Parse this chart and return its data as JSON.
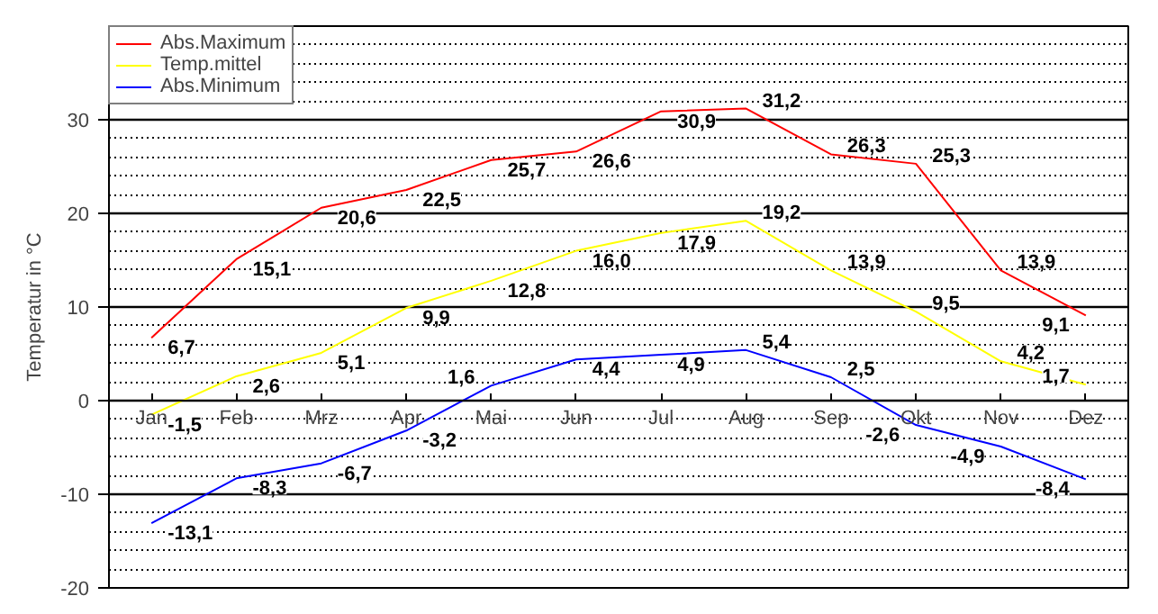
{
  "chart_data": {
    "type": "line",
    "ylabel": "Temperatur in °C",
    "categories": [
      "Jan",
      "Feb",
      "Mrz",
      "Apr",
      "Mai",
      "Jun",
      "Jul",
      "Aug",
      "Sep",
      "Okt",
      "Nov",
      "Dez"
    ],
    "series": [
      {
        "name": "Abs.Maximum",
        "color": "#ff0000",
        "values": [
          6.7,
          15.1,
          20.6,
          22.5,
          25.7,
          26.6,
          30.9,
          31.2,
          26.3,
          25.3,
          13.9,
          9.1
        ],
        "value_labels": [
          "6,7",
          "15,1",
          "20,6",
          "22,5",
          "25,7",
          "26,6",
          "30,9",
          "31,2",
          "26,3",
          "25,3",
          "13,9",
          "9,1"
        ]
      },
      {
        "name": "Temp.mittel",
        "color": "#ffff00",
        "values": [
          -1.5,
          2.6,
          5.1,
          9.9,
          12.8,
          16.0,
          17.9,
          19.2,
          13.9,
          9.5,
          4.2,
          1.7
        ],
        "value_labels": [
          "-1,5",
          "2,6",
          "5,1",
          "9,9",
          "12,8",
          "16,0",
          "17,9",
          "19,2",
          "13,9",
          "9,5",
          "4,2",
          "1,7"
        ]
      },
      {
        "name": "Abs.Minimum",
        "color": "#0000ff",
        "values": [
          -13.1,
          -8.3,
          -6.7,
          -3.2,
          1.6,
          4.4,
          4.9,
          5.4,
          2.5,
          -2.6,
          -4.9,
          -8.4
        ],
        "value_labels": [
          "-13,1",
          "-8,3",
          "-6,7",
          "-3,2",
          "1,6",
          "4,4",
          "4,9",
          "5,4",
          "2,5",
          "-2,6",
          "-4,9",
          "-8,4"
        ]
      }
    ],
    "ylim": [
      -20,
      40
    ],
    "yticks": [
      -20,
      -10,
      0,
      10,
      20,
      30
    ],
    "grid": "y",
    "legend": "top left",
    "marker": "none",
    "line_style": "solid"
  }
}
